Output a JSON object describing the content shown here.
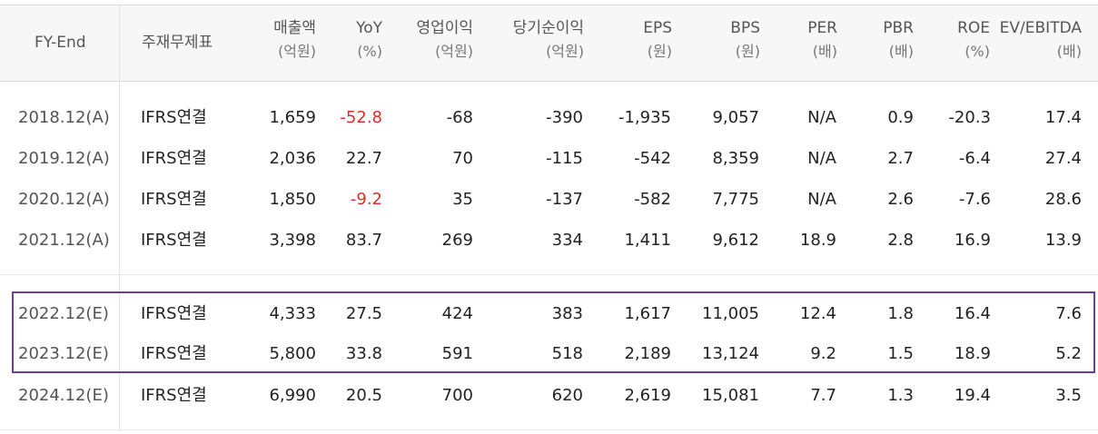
{
  "header": {
    "fy_end": "FY-End",
    "main_financial": "주재무제표",
    "columns": [
      {
        "label": "매출액",
        "unit": "(억원)"
      },
      {
        "label": "YoY",
        "unit": "(%)"
      },
      {
        "label": "영업이익",
        "unit": "(억원)"
      },
      {
        "label": "당기순이익",
        "unit": "(억원)"
      },
      {
        "label": "EPS",
        "unit": "(원)"
      },
      {
        "label": "BPS",
        "unit": "(원)"
      },
      {
        "label": "PER",
        "unit": "(배)"
      },
      {
        "label": "PBR",
        "unit": "(배)"
      },
      {
        "label": "ROE",
        "unit": "(%)"
      },
      {
        "label": "EV/EBITDA",
        "unit": "(배)"
      }
    ]
  },
  "rows": [
    {
      "year": "2018.12(A)",
      "type": "IFRS연결",
      "values": [
        "1,659",
        "-52.8",
        "-68",
        "-390",
        "-1,935",
        "9,057",
        "N/A",
        "0.9",
        "-20.3",
        "17.4"
      ]
    },
    {
      "year": "2019.12(A)",
      "type": "IFRS연결",
      "values": [
        "2,036",
        "22.7",
        "70",
        "-115",
        "-542",
        "8,359",
        "N/A",
        "2.7",
        "-6.4",
        "27.4"
      ]
    },
    {
      "year": "2020.12(A)",
      "type": "IFRS연결",
      "values": [
        "1,850",
        "-9.2",
        "35",
        "-137",
        "-582",
        "7,775",
        "N/A",
        "2.6",
        "-7.6",
        "28.6"
      ]
    },
    {
      "year": "2021.12(A)",
      "type": "IFRS연결",
      "values": [
        "3,398",
        "83.7",
        "269",
        "334",
        "1,411",
        "9,612",
        "18.9",
        "2.8",
        "16.9",
        "13.9"
      ]
    },
    {
      "year": "2022.12(E)",
      "type": "IFRS연결",
      "values": [
        "4,333",
        "27.5",
        "424",
        "383",
        "1,617",
        "11,005",
        "12.4",
        "1.8",
        "16.4",
        "7.6"
      ]
    },
    {
      "year": "2023.12(E)",
      "type": "IFRS연결",
      "values": [
        "5,800",
        "33.8",
        "591",
        "518",
        "2,189",
        "13,124",
        "9.2",
        "1.5",
        "18.9",
        "5.2"
      ]
    },
    {
      "year": "2024.12(E)",
      "type": "IFRS연결",
      "values": [
        "6,990",
        "20.5",
        "700",
        "620",
        "2,619",
        "15,081",
        "7.7",
        "1.3",
        "19.4",
        "3.5"
      ]
    }
  ],
  "colors": {
    "negative_yoy": "#e02b2b",
    "highlight_border": "#6a3ea1"
  }
}
